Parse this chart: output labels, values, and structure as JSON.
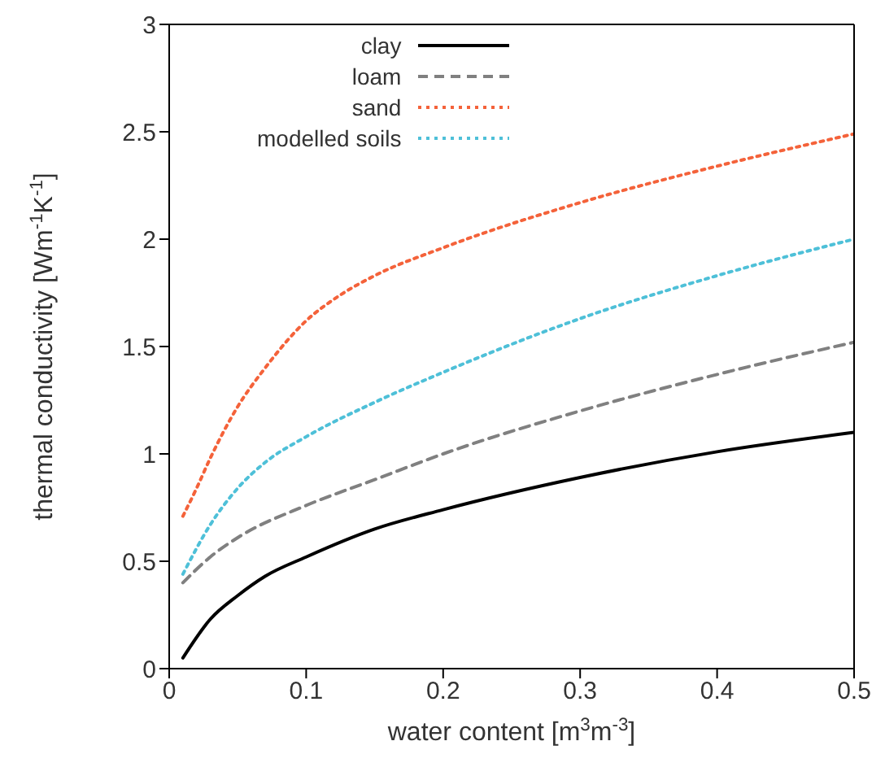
{
  "chart_data": {
    "type": "line",
    "xlabel": "water content [m$^{3}$m$^{-3}$]",
    "ylabel": "thermal conductivity [Wm$^{-1}$K$^{-1}$]",
    "xlim": [
      0,
      0.5
    ],
    "xticks": [
      0,
      0.1,
      0.2,
      0.3,
      0.4,
      0.5
    ],
    "ylim": [
      0,
      3
    ],
    "yticks": [
      0,
      0.5,
      1,
      1.5,
      2,
      2.5,
      3
    ],
    "grid": false,
    "legend": "top",
    "marker": "none",
    "series": [
      {
        "name": "clay",
        "color": "#000000",
        "line_style": "solid",
        "x": [
          0.01,
          0.03,
          0.05,
          0.07,
          0.1,
          0.15,
          0.2,
          0.3,
          0.4,
          0.5
        ],
        "values": [
          0.05,
          0.23,
          0.34,
          0.43,
          0.52,
          0.65,
          0.74,
          0.89,
          1.01,
          1.1
        ]
      },
      {
        "name": "loam",
        "color": "#808080",
        "line_style": "dashed",
        "x": [
          0.01,
          0.03,
          0.05,
          0.1,
          0.15,
          0.2,
          0.3,
          0.4,
          0.5
        ],
        "values": [
          0.4,
          0.52,
          0.61,
          0.76,
          0.88,
          1.0,
          1.2,
          1.37,
          1.52
        ]
      },
      {
        "name": "sand",
        "color": "#f4623a",
        "line_style": "dotted",
        "x": [
          0.01,
          0.02,
          0.03,
          0.05,
          0.07,
          0.1,
          0.125,
          0.15,
          0.2,
          0.3,
          0.4,
          0.5
        ],
        "values": [
          0.71,
          0.84,
          0.98,
          1.22,
          1.4,
          1.62,
          1.74,
          1.83,
          1.96,
          2.17,
          2.34,
          2.49
        ]
      },
      {
        "name": "modelled soils",
        "color": "#4ec0d8",
        "line_style": "dotted",
        "x": [
          0.01,
          0.03,
          0.05,
          0.07,
          0.1,
          0.15,
          0.2,
          0.3,
          0.4,
          0.5
        ],
        "values": [
          0.44,
          0.67,
          0.84,
          0.96,
          1.08,
          1.24,
          1.38,
          1.63,
          1.83,
          2.0
        ]
      }
    ]
  }
}
